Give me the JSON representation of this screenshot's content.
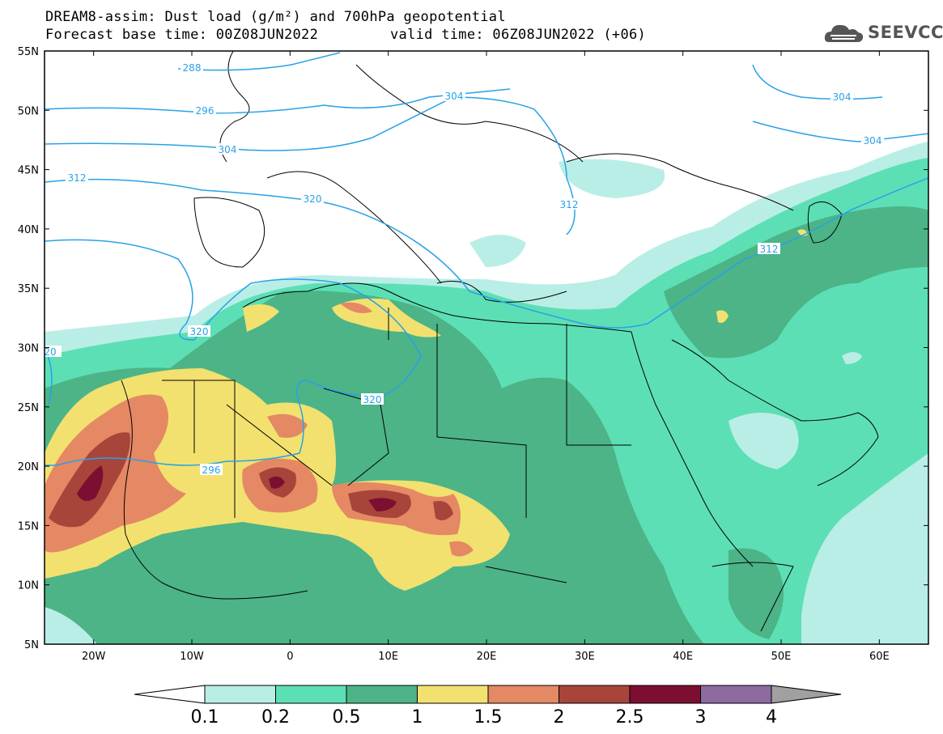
{
  "header": {
    "line1": "DREAM8-assim: Dust load (g/m²) and 700hPa geopotential",
    "line2": "Forecast base time: 00Z08JUN2022",
    "line2b": "valid time: 06Z08JUN2022 (+06)"
  },
  "logo": {
    "text": "SEEVCCC",
    "icon": "cloud-logo-icon"
  },
  "axes": {
    "lat_labels": [
      "55N",
      "50N",
      "45N",
      "40N",
      "35N",
      "30N",
      "25N",
      "20N",
      "15N",
      "10N",
      "5N"
    ],
    "lon_labels": [
      "20W",
      "10W",
      "0",
      "10E",
      "20E",
      "30E",
      "40E",
      "50E",
      "60E"
    ]
  },
  "map": {
    "lon_range": [
      -25,
      65
    ],
    "lat_range": [
      5,
      55
    ],
    "contour_labels": [
      "288",
      "296",
      "304",
      "312",
      "320",
      "320",
      "320",
      "296",
      "304",
      "304",
      "312",
      "20",
      "312",
      "304"
    ]
  },
  "colorbar": {
    "ticks": [
      "0.1",
      "0.2",
      "0.5",
      "1",
      "1.5",
      "2",
      "2.5",
      "3",
      "4"
    ],
    "colors": [
      "#b9eee6",
      "#5ddfb5",
      "#4cb487",
      "#f2e16f",
      "#e58864",
      "#a7453b",
      "#7c0e31",
      "#8e6aa1",
      "#a0a0a0"
    ]
  }
}
